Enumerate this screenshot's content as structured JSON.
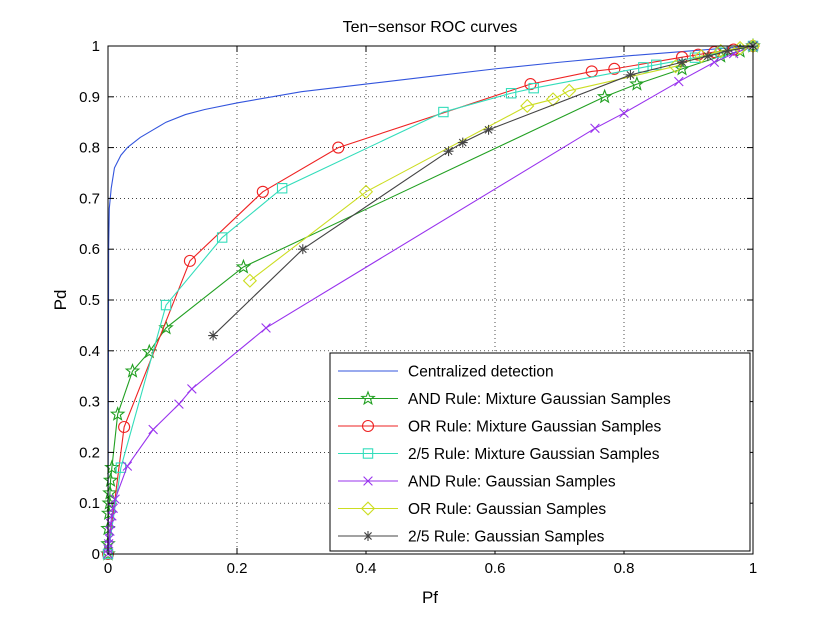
{
  "chart_data": {
    "type": "line",
    "title": "Ten−sensor ROC curves",
    "xlabel": "Pf",
    "ylabel": "Pd",
    "xlim": [
      0,
      1
    ],
    "ylim": [
      0,
      1
    ],
    "grid": true,
    "legend_position": "bottom-right",
    "xticks": [
      0,
      0.2,
      0.4,
      0.6,
      0.8,
      1
    ],
    "xtick_labels": [
      "0",
      "0.2",
      "0.4",
      "0.6",
      "0.8",
      "1"
    ],
    "yticks": [
      0,
      0.1,
      0.2,
      0.3,
      0.4,
      0.5,
      0.6,
      0.7,
      0.8,
      0.9,
      1
    ],
    "ytick_labels": [
      "0",
      "0.1",
      "0.2",
      "0.3",
      "0.4",
      "0.5",
      "0.6",
      "0.7",
      "0.8",
      "0.9",
      "1"
    ],
    "series": [
      {
        "name": "Centralized detection",
        "color": "#3355dd",
        "marker": "none",
        "points": [
          [
            0,
            0
          ],
          [
            0.001,
            0.6
          ],
          [
            0.002,
            0.68
          ],
          [
            0.005,
            0.72
          ],
          [
            0.01,
            0.76
          ],
          [
            0.02,
            0.785
          ],
          [
            0.03,
            0.8
          ],
          [
            0.05,
            0.82
          ],
          [
            0.07,
            0.835
          ],
          [
            0.09,
            0.85
          ],
          [
            0.12,
            0.865
          ],
          [
            0.15,
            0.875
          ],
          [
            0.2,
            0.888
          ],
          [
            0.3,
            0.91
          ],
          [
            0.4,
            0.925
          ],
          [
            0.5,
            0.94
          ],
          [
            0.6,
            0.955
          ],
          [
            0.7,
            0.968
          ],
          [
            0.8,
            0.98
          ],
          [
            0.9,
            0.99
          ],
          [
            1,
            1
          ]
        ]
      },
      {
        "name": "AND Rule: Mixture Gaussian Samples",
        "color": "#22a022",
        "marker": "star",
        "points": [
          [
            0,
            0
          ],
          [
            0,
            0.02
          ],
          [
            0,
            0.05
          ],
          [
            0.001,
            0.08
          ],
          [
            0.002,
            0.1
          ],
          [
            0.003,
            0.12
          ],
          [
            0.004,
            0.145
          ],
          [
            0.006,
            0.17
          ],
          [
            0.015,
            0.275
          ],
          [
            0.038,
            0.36
          ],
          [
            0.064,
            0.398
          ],
          [
            0.09,
            0.445
          ],
          [
            0.21,
            0.565
          ],
          [
            0.77,
            0.9
          ],
          [
            0.82,
            0.925
          ],
          [
            0.89,
            0.955
          ],
          [
            0.95,
            0.98
          ],
          [
            0.98,
            0.99
          ],
          [
            1,
            1
          ]
        ]
      },
      {
        "name": "OR Rule: Mixture Gaussian Samples",
        "color": "#ee2222",
        "marker": "circle",
        "points": [
          [
            0,
            0
          ],
          [
            0.025,
            0.25
          ],
          [
            0.127,
            0.577
          ],
          [
            0.24,
            0.713
          ],
          [
            0.357,
            0.8
          ],
          [
            0.655,
            0.925
          ],
          [
            0.75,
            0.95
          ],
          [
            0.785,
            0.955
          ],
          [
            0.89,
            0.978
          ],
          [
            0.915,
            0.983
          ],
          [
            0.94,
            0.988
          ],
          [
            0.97,
            0.993
          ],
          [
            1,
            1
          ]
        ]
      },
      {
        "name": "2/5 Rule: Mixture Gaussian Samples",
        "color": "#33ddbb",
        "marker": "square",
        "points": [
          [
            0,
            0
          ],
          [
            0.02,
            0.17
          ],
          [
            0.09,
            0.49
          ],
          [
            0.177,
            0.623
          ],
          [
            0.27,
            0.72
          ],
          [
            0.52,
            0.87
          ],
          [
            0.625,
            0.907
          ],
          [
            0.66,
            0.917
          ],
          [
            0.83,
            0.958
          ],
          [
            0.85,
            0.963
          ],
          [
            0.91,
            0.977
          ],
          [
            0.95,
            0.987
          ],
          [
            1,
            1
          ]
        ]
      },
      {
        "name": "AND Rule: Gaussian Samples",
        "color": "#9933ee",
        "marker": "x",
        "points": [
          [
            0,
            0
          ],
          [
            0,
            0.01
          ],
          [
            0.001,
            0.02
          ],
          [
            0.002,
            0.03
          ],
          [
            0.003,
            0.045
          ],
          [
            0.004,
            0.06
          ],
          [
            0.006,
            0.075
          ],
          [
            0.008,
            0.09
          ],
          [
            0.011,
            0.108
          ],
          [
            0.03,
            0.173
          ],
          [
            0.07,
            0.245
          ],
          [
            0.11,
            0.295
          ],
          [
            0.13,
            0.325
          ],
          [
            0.245,
            0.445
          ],
          [
            0.755,
            0.838
          ],
          [
            0.8,
            0.868
          ],
          [
            0.885,
            0.93
          ],
          [
            0.94,
            0.968
          ],
          [
            0.97,
            0.985
          ],
          [
            1,
            1
          ]
        ]
      },
      {
        "name": "OR Rule: Gaussian Samples",
        "color": "#ccdd22",
        "marker": "diamond",
        "points": [
          [
            0.22,
            0.538
          ],
          [
            0.4,
            0.713
          ],
          [
            0.65,
            0.882
          ],
          [
            0.69,
            0.895
          ],
          [
            0.715,
            0.912
          ],
          [
            0.88,
            0.96
          ],
          [
            0.92,
            0.98
          ],
          [
            0.95,
            0.99
          ],
          [
            0.98,
            0.996
          ],
          [
            1,
            1
          ]
        ]
      },
      {
        "name": "2/5 Rule: Gaussian Samples",
        "color": "#444444",
        "marker": "asterisk",
        "points": [
          [
            0.163,
            0.43
          ],
          [
            0.302,
            0.6
          ],
          [
            0.528,
            0.793
          ],
          [
            0.55,
            0.81
          ],
          [
            0.59,
            0.835
          ],
          [
            0.81,
            0.943
          ],
          [
            0.89,
            0.968
          ],
          [
            0.93,
            0.98
          ],
          [
            0.96,
            0.99
          ],
          [
            1,
            1
          ]
        ]
      }
    ]
  }
}
